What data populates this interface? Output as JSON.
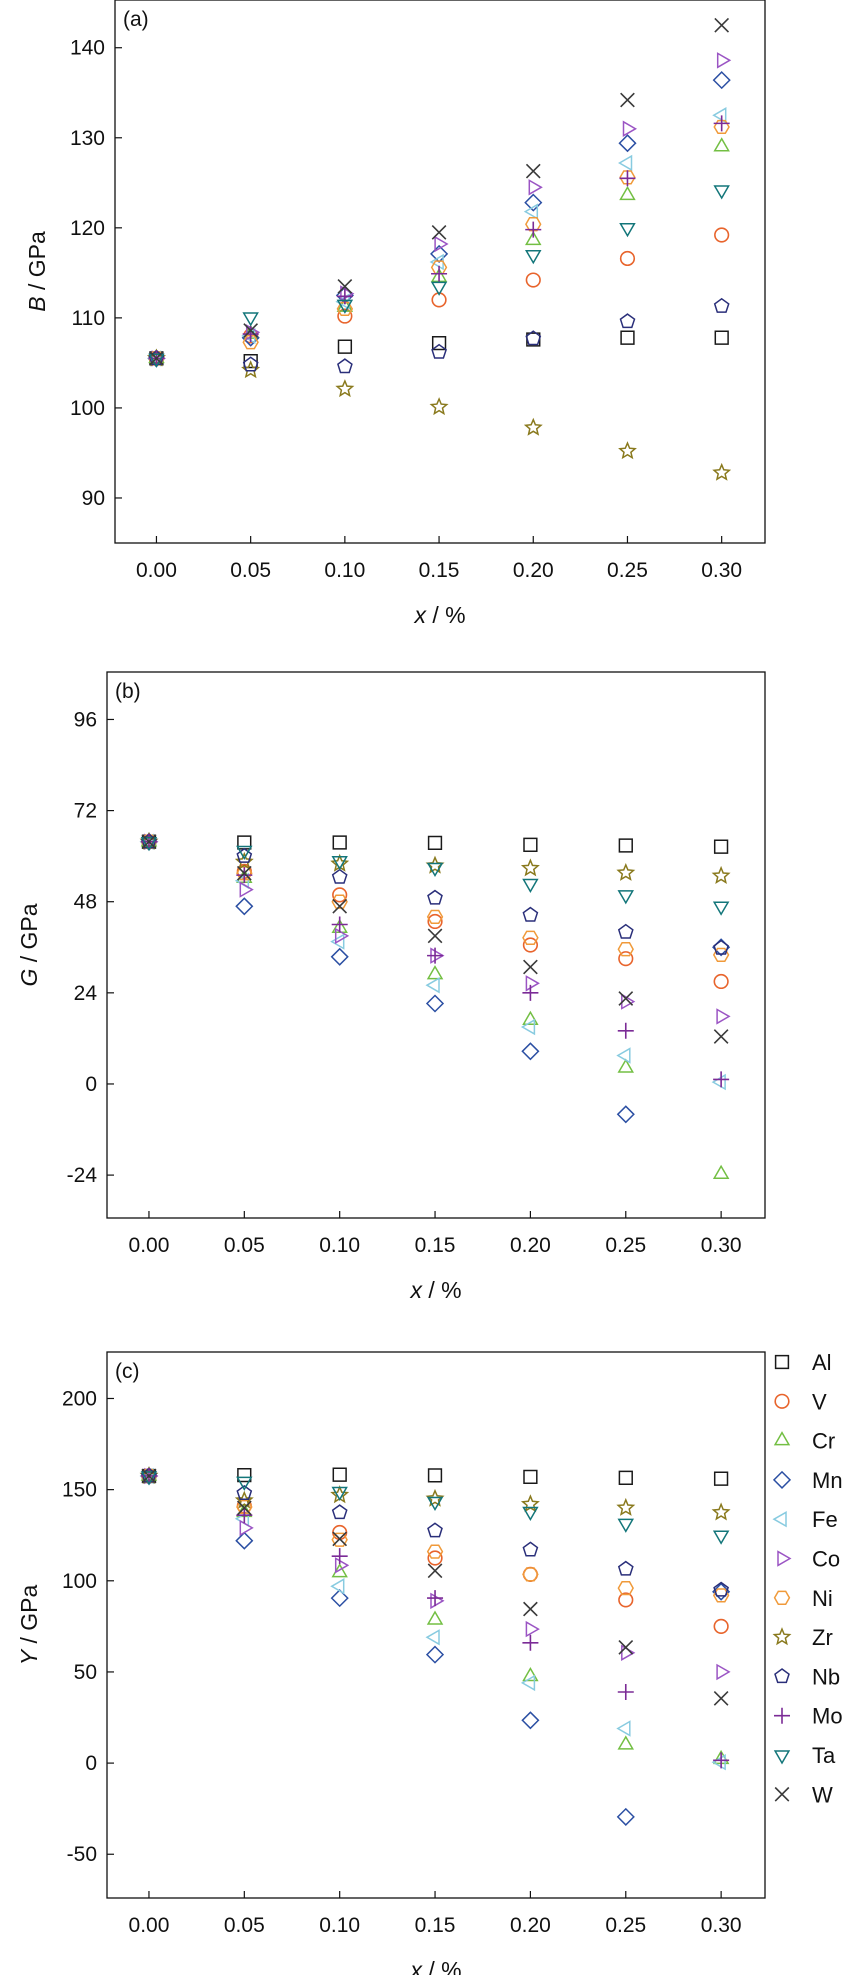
{
  "chart_data": [
    {
      "type": "scatter",
      "title": "(a)",
      "xlabel_italic": "x",
      "xlabel_rest": " / %",
      "ylabel_italic": "B",
      "ylabel_rest": " / GPa",
      "x": [
        0.0,
        0.05,
        0.1,
        0.15,
        0.2,
        0.25,
        0.3
      ],
      "x_ticks": [
        "0.00",
        "0.05",
        "0.10",
        "0.15",
        "0.20",
        "0.25",
        "0.30"
      ],
      "xlim": [
        -0.022,
        0.323
      ],
      "ylim": [
        85,
        145.3
      ],
      "y_ticks": [
        90,
        100,
        110,
        120,
        130,
        140
      ],
      "grid": false,
      "series": [
        {
          "name": "Al",
          "values": [
            105.5,
            105.2,
            106.8,
            107.2,
            107.6,
            107.8,
            107.8
          ]
        },
        {
          "name": "V",
          "values": [
            105.5,
            108.0,
            110.2,
            112.0,
            114.2,
            116.6,
            119.2
          ]
        },
        {
          "name": "Cr",
          "values": [
            105.5,
            108.2,
            111.2,
            114.5,
            118.6,
            123.6,
            129.0
          ]
        },
        {
          "name": "Mn",
          "values": [
            105.5,
            107.8,
            112.5,
            117.1,
            122.8,
            129.4,
            136.4
          ]
        },
        {
          "name": "Fe",
          "values": [
            105.5,
            108.0,
            111.8,
            116.2,
            121.8,
            127.2,
            132.5
          ]
        },
        {
          "name": "Co",
          "values": [
            105.5,
            108.4,
            112.7,
            118.2,
            124.5,
            131.0,
            138.6
          ]
        },
        {
          "name": "Ni",
          "values": [
            105.5,
            107.3,
            111.0,
            115.6,
            120.4,
            125.6,
            131.2
          ]
        },
        {
          "name": "Zr",
          "values": [
            105.5,
            104.2,
            102.1,
            100.1,
            97.8,
            95.2,
            92.8
          ]
        },
        {
          "name": "Nb",
          "values": [
            105.5,
            104.8,
            104.6,
            106.2,
            107.7,
            109.6,
            111.3
          ]
        },
        {
          "name": "Mo",
          "values": [
            105.5,
            108.2,
            112.4,
            114.9,
            119.8,
            125.5,
            131.6
          ]
        },
        {
          "name": "Ta",
          "values": [
            105.5,
            110.1,
            111.5,
            113.5,
            117.0,
            120.0,
            124.2
          ]
        },
        {
          "name": "W",
          "values": [
            105.5,
            108.6,
            113.5,
            119.5,
            126.3,
            134.2,
            142.5
          ]
        }
      ]
    },
    {
      "type": "scatter",
      "title": "(b)",
      "xlabel_italic": "x",
      "xlabel_rest": " / %",
      "ylabel_italic": "G",
      "ylabel_rest": " / GPa",
      "x": [
        0.0,
        0.05,
        0.1,
        0.15,
        0.2,
        0.25,
        0.3
      ],
      "x_ticks": [
        "0.00",
        "0.05",
        "0.10",
        "0.15",
        "0.20",
        "0.25",
        "0.30"
      ],
      "xlim": [
        -0.022,
        0.323
      ],
      "ylim": [
        -35.3,
        108.5
      ],
      "y_ticks": [
        -24,
        0,
        24,
        48,
        72,
        96
      ],
      "grid": false,
      "series": [
        {
          "name": "Al",
          "values": [
            63.8,
            63.6,
            63.6,
            63.5,
            63.0,
            62.8,
            62.5
          ]
        },
        {
          "name": "V",
          "values": [
            63.8,
            56.0,
            49.8,
            42.8,
            36.6,
            33.0,
            27.0
          ]
        },
        {
          "name": "Cr",
          "values": [
            63.8,
            54.2,
            41.0,
            28.8,
            16.8,
            4.2,
            -23.8
          ]
        },
        {
          "name": "Mn",
          "values": [
            63.8,
            46.8,
            33.5,
            21.2,
            8.6,
            -8.0,
            36.0
          ]
        },
        {
          "name": "Fe",
          "values": [
            63.8,
            53.5,
            37.5,
            26.0,
            15.0,
            7.5,
            0.5
          ]
        },
        {
          "name": "Co",
          "values": [
            63.8,
            51.2,
            39.0,
            33.8,
            26.5,
            21.7,
            17.8
          ]
        },
        {
          "name": "Ni",
          "values": [
            63.8,
            55.5,
            48.0,
            44.0,
            38.5,
            35.5,
            34.0
          ]
        },
        {
          "name": "Zr",
          "values": [
            63.8,
            58.5,
            58.0,
            57.5,
            56.8,
            55.6,
            54.8
          ]
        },
        {
          "name": "Nb",
          "values": [
            63.8,
            60.0,
            54.5,
            49.0,
            44.5,
            40.0,
            35.8
          ]
        },
        {
          "name": "Mo",
          "values": [
            63.8,
            55.0,
            42.0,
            33.8,
            24.0,
            14.0,
            1.2
          ]
        },
        {
          "name": "Ta",
          "values": [
            63.8,
            61.5,
            58.8,
            57.0,
            52.8,
            49.8,
            46.8
          ]
        },
        {
          "name": "W",
          "values": [
            63.8,
            55.5,
            46.8,
            39.0,
            30.8,
            22.5,
            12.5
          ]
        }
      ]
    },
    {
      "type": "scatter",
      "title": "(c)",
      "xlabel_italic": "x",
      "xlabel_rest": " / %",
      "ylabel_italic": "Y",
      "ylabel_rest": " / GPa",
      "x": [
        0.0,
        0.05,
        0.1,
        0.15,
        0.2,
        0.25,
        0.3
      ],
      "x_ticks": [
        "0.00",
        "0.05",
        "0.10",
        "0.15",
        "0.20",
        "0.25",
        "0.30"
      ],
      "xlim": [
        -0.022,
        0.323
      ],
      "ylim": [
        -74,
        225.5
      ],
      "y_ticks": [
        -50,
        0,
        50,
        100,
        150,
        200
      ],
      "grid": false,
      "legend": "right",
      "series": [
        {
          "name": "Al",
          "values": [
            157.5,
            158.0,
            158.2,
            157.8,
            157.0,
            156.5,
            156.0
          ]
        },
        {
          "name": "V",
          "values": [
            157.5,
            141.0,
            126.5,
            112.5,
            103.5,
            89.5,
            75.0
          ]
        },
        {
          "name": "Cr",
          "values": [
            157.5,
            137.5,
            104.5,
            78.5,
            47.5,
            10.0,
            2.0
          ]
        },
        {
          "name": "Mn",
          "values": [
            157.5,
            122.0,
            90.5,
            59.5,
            23.5,
            -29.5,
            94.0
          ]
        },
        {
          "name": "Fe",
          "values": [
            157.5,
            134.0,
            97.0,
            69.0,
            44.0,
            19.0,
            0.5
          ]
        },
        {
          "name": "Co",
          "values": [
            157.5,
            129.0,
            108.5,
            89.0,
            73.5,
            60.5,
            50.0
          ]
        },
        {
          "name": "Ni",
          "values": [
            157.5,
            140.5,
            122.5,
            116.0,
            103.5,
            96.0,
            92.0
          ]
        },
        {
          "name": "Zr",
          "values": [
            157.5,
            144.0,
            147.0,
            145.0,
            142.0,
            140.0,
            137.5
          ]
        },
        {
          "name": "Nb",
          "values": [
            157.5,
            148.0,
            137.5,
            127.5,
            117.0,
            106.5,
            95.0
          ]
        },
        {
          "name": "Mo",
          "values": [
            157.5,
            136.0,
            113.5,
            90.5,
            66.0,
            39.0,
            1.5
          ]
        },
        {
          "name": "Ta",
          "values": [
            157.5,
            154.5,
            149.0,
            143.5,
            138.0,
            131.5,
            125.0
          ]
        },
        {
          "name": "W",
          "values": [
            157.5,
            140.0,
            123.0,
            105.5,
            84.5,
            63.5,
            35.5
          ]
        }
      ]
    }
  ],
  "styles": {
    "Al": {
      "marker": "square",
      "color": "#1a1a1a"
    },
    "V": {
      "marker": "circle",
      "color": "#e8642c"
    },
    "Cr": {
      "marker": "triangle-up",
      "color": "#73bf43"
    },
    "Mn": {
      "marker": "diamond",
      "color": "#2b4fa3"
    },
    "Fe": {
      "marker": "triangle-left",
      "color": "#88cbe0"
    },
    "Co": {
      "marker": "triangle-right",
      "color": "#9b55c4"
    },
    "Ni": {
      "marker": "hexagon",
      "color": "#f09a3a"
    },
    "Zr": {
      "marker": "star",
      "color": "#8a7a1e"
    },
    "Nb": {
      "marker": "pentagon",
      "color": "#2a2f7a"
    },
    "Mo": {
      "marker": "plus",
      "color": "#7b2b96"
    },
    "Ta": {
      "marker": "triangle-down",
      "color": "#13767a"
    },
    "W": {
      "marker": "x",
      "color": "#3a3a3a"
    }
  }
}
